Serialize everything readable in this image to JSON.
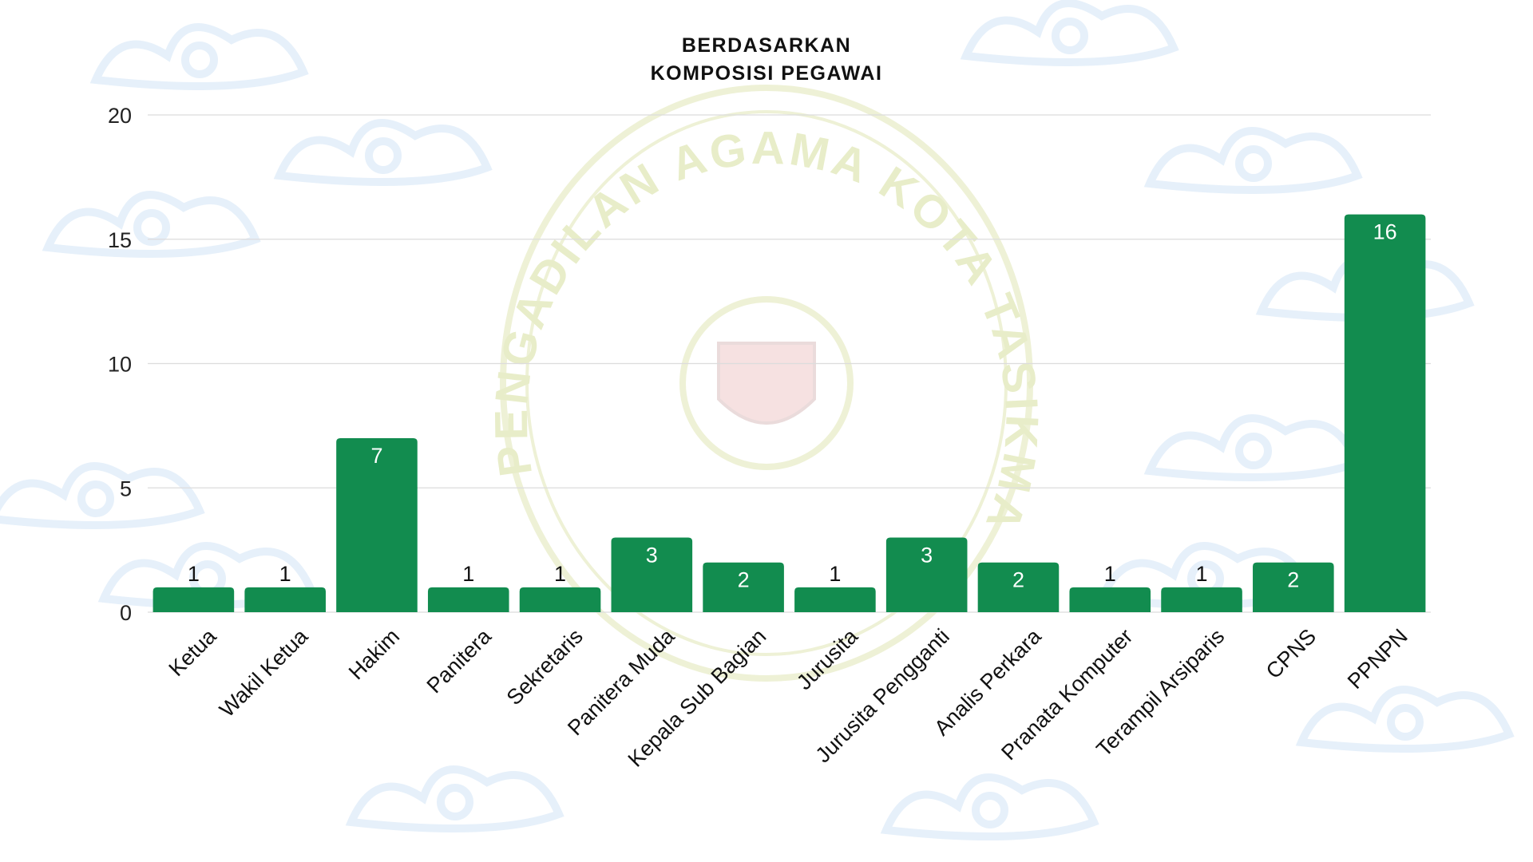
{
  "colors": {
    "bar": "#128c4f",
    "label_inside": "#ffffff",
    "label_outside": "#111111",
    "grid": "#dcdcdc",
    "cloud": "#e6f0fa",
    "seal": "#eef1d6"
  },
  "background": {
    "watermark_text": "PENGADILAN AGAMA KOTA TASIKMALAYA"
  },
  "chart_data": {
    "type": "bar",
    "title": "BERDASARKAN\nKOMPOSISI PEGAWAI",
    "title_lines": [
      "BERDASARKAN",
      "KOMPOSISI PEGAWAI"
    ],
    "categories": [
      "Ketua",
      "Wakil Ketua",
      "Hakim",
      "Panitera",
      "Sekretaris",
      "Panitera Muda",
      "Kepala Sub Bagian",
      "Jurusita",
      "Jurusita Pengganti",
      "Analis Perkara",
      "Pranata Komputer",
      "Terampil Arsiparis",
      "CPNS",
      "PPNPN"
    ],
    "values": [
      1,
      1,
      7,
      1,
      1,
      3,
      2,
      1,
      3,
      2,
      1,
      1,
      2,
      16
    ],
    "xlabel": "",
    "ylabel": "",
    "ylim": [
      0,
      20
    ],
    "yticks": [
      0,
      5,
      10,
      15,
      20
    ],
    "grid": true,
    "legend": "none",
    "data_labels": true
  }
}
